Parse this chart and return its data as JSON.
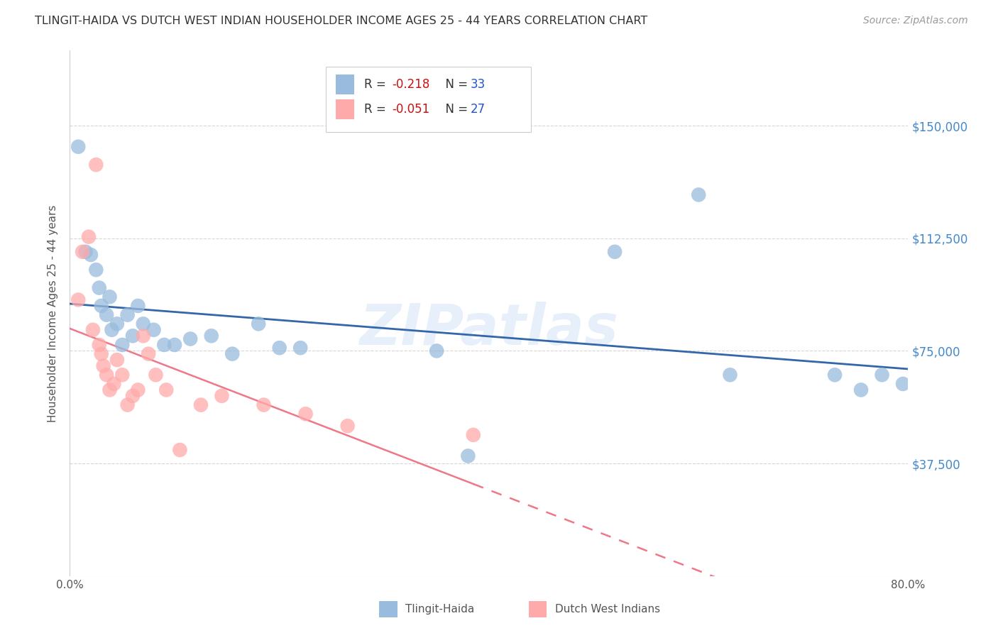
{
  "title": "TLINGIT-HAIDA VS DUTCH WEST INDIAN HOUSEHOLDER INCOME AGES 25 - 44 YEARS CORRELATION CHART",
  "source": "Source: ZipAtlas.com",
  "ylabel": "Householder Income Ages 25 - 44 years",
  "watermark": "ZIPatlas",
  "xmin": 0.0,
  "xmax": 0.8,
  "ymin": 0,
  "ymax": 175000,
  "yticks": [
    37500,
    75000,
    112500,
    150000
  ],
  "ytick_labels": [
    "$37,500",
    "$75,000",
    "$112,500",
    "$150,000"
  ],
  "xticks": [
    0.0,
    0.1,
    0.2,
    0.3,
    0.4,
    0.5,
    0.6,
    0.7,
    0.8
  ],
  "xtick_labels": [
    "0.0%",
    "",
    "",
    "",
    "",
    "",
    "",
    "",
    "80.0%"
  ],
  "blue_color": "#99BBDD",
  "pink_color": "#FFAAAA",
  "blue_line_color": "#3366AA",
  "pink_line_color": "#EE7788",
  "blue_label": "Tlingit-Haida",
  "pink_label": "Dutch West Indians",
  "tlingit_x": [
    0.008,
    0.015,
    0.02,
    0.025,
    0.028,
    0.03,
    0.035,
    0.038,
    0.04,
    0.045,
    0.05,
    0.055,
    0.06,
    0.065,
    0.07,
    0.08,
    0.09,
    0.1,
    0.115,
    0.135,
    0.155,
    0.18,
    0.2,
    0.22,
    0.35,
    0.38,
    0.52,
    0.6,
    0.63,
    0.73,
    0.755,
    0.775,
    0.795
  ],
  "tlingit_y": [
    143000,
    108000,
    107000,
    102000,
    96000,
    90000,
    87000,
    93000,
    82000,
    84000,
    77000,
    87000,
    80000,
    90000,
    84000,
    82000,
    77000,
    77000,
    79000,
    80000,
    74000,
    84000,
    76000,
    76000,
    75000,
    40000,
    108000,
    127000,
    67000,
    67000,
    62000,
    67000,
    64000
  ],
  "dutch_x": [
    0.008,
    0.012,
    0.018,
    0.022,
    0.025,
    0.028,
    0.03,
    0.032,
    0.035,
    0.038,
    0.042,
    0.045,
    0.05,
    0.055,
    0.06,
    0.065,
    0.07,
    0.075,
    0.082,
    0.092,
    0.105,
    0.125,
    0.145,
    0.185,
    0.225,
    0.265,
    0.385
  ],
  "dutch_y": [
    92000,
    108000,
    113000,
    82000,
    137000,
    77000,
    74000,
    70000,
    67000,
    62000,
    64000,
    72000,
    67000,
    57000,
    60000,
    62000,
    80000,
    74000,
    67000,
    62000,
    42000,
    57000,
    60000,
    57000,
    54000,
    50000,
    47000
  ]
}
